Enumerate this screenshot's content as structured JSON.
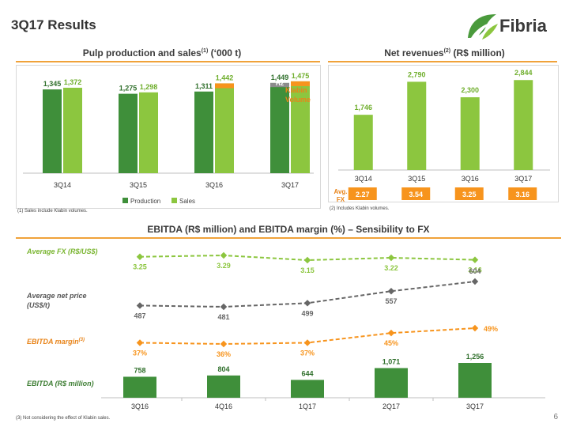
{
  "page": {
    "title": "3Q17 Results",
    "page_number": "6"
  },
  "logo": {
    "text": "Fibria"
  },
  "colors": {
    "production": "#3f8f3a",
    "sales": "#8cc63f",
    "highlight": "#f7941d",
    "h2": "#8c8c8c",
    "fx_box": "#f7941d",
    "accent_rule": "#f0a23a"
  },
  "pulp_section": {
    "title_main": "Pulp production and sales",
    "title_sup": "(1)",
    "title_unit": " (‘000 t)",
    "footnote": "(1) Sales include Klabin volumes.",
    "h2_label": "H2",
    "klabin_label": [
      "Klabin",
      "Volume"
    ]
  },
  "revenue_section": {
    "title_main": "Net revenues",
    "title_sup": "(2)",
    "title_unit": " (R$ million)",
    "footnote": "(2) Includes Klabin volumes.",
    "fx_label": [
      "Avg.",
      "FX"
    ]
  },
  "ebitda_section": {
    "title": "EBITDA (R$ million) and EBITDA margin (%) – Sensibility to FX",
    "footnote": "(3) Not considering the effect of Klabin sales.",
    "row_labels": {
      "fx": "Average FX (R$/US$)",
      "price": [
        "Average net price",
        "(US$/t)"
      ],
      "margin": "EBITDA margin",
      "margin_sup": "(3)",
      "ebitda": "EBITDA (R$ million)"
    }
  },
  "chart_data": [
    {
      "type": "bar",
      "categories": [
        "3Q14",
        "3Q15",
        "3Q16",
        "3Q17"
      ],
      "series": [
        {
          "name": "Production",
          "values": [
            1345,
            1275,
            1311,
            1449
          ],
          "labels": [
            "1,345",
            "1,275",
            "1,311",
            "1,449"
          ]
        },
        {
          "name": "Sales",
          "values": [
            1372,
            1298,
            1442,
            1475
          ],
          "labels": [
            "1,372",
            "1,298",
            "1,442",
            "1,475"
          ]
        }
      ],
      "klabin_volume": [
        0,
        0,
        77,
        77
      ],
      "h2_portion_3Q17": 67,
      "title": "Pulp production and sales(1) (‘000 t)",
      "legend": "bottom",
      "ylim": [
        0,
        1600
      ]
    },
    {
      "type": "bar",
      "categories": [
        "3Q14",
        "3Q15",
        "3Q16",
        "3Q17"
      ],
      "values": [
        1746,
        2790,
        2300,
        2844
      ],
      "labels": [
        "1,746",
        "2,790",
        "2,300",
        "2,844"
      ],
      "avg_fx": [
        "2.27",
        "3.54",
        "3.25",
        "3.16"
      ],
      "title": "Net revenues(2) (R$ million)",
      "ylim": [
        0,
        3200
      ]
    },
    {
      "type": "line",
      "categories": [
        "3Q16",
        "4Q16",
        "1Q17",
        "2Q17",
        "3Q17"
      ],
      "fx": {
        "values": [
          3.25,
          3.29,
          3.15,
          3.22,
          3.16
        ],
        "labels": [
          "3.25",
          "3.29",
          "3.15",
          "3.22",
          "3.16"
        ]
      },
      "price": {
        "values": [
          487,
          481,
          499,
          557,
          604
        ],
        "labels": [
          "487",
          "481",
          "499",
          "557",
          "604"
        ]
      },
      "margin": {
        "values": [
          37,
          36,
          37,
          45,
          49
        ],
        "labels": [
          "37%",
          "36%",
          "37%",
          "45%",
          "49%"
        ]
      },
      "ebitda": {
        "values": [
          758,
          804,
          644,
          1071,
          1256
        ],
        "labels": [
          "758",
          "804",
          "644",
          "1,071",
          "1,256"
        ]
      },
      "title": "EBITDA (R$ million) and EBITDA margin (%) – Sensibility to FX"
    }
  ]
}
